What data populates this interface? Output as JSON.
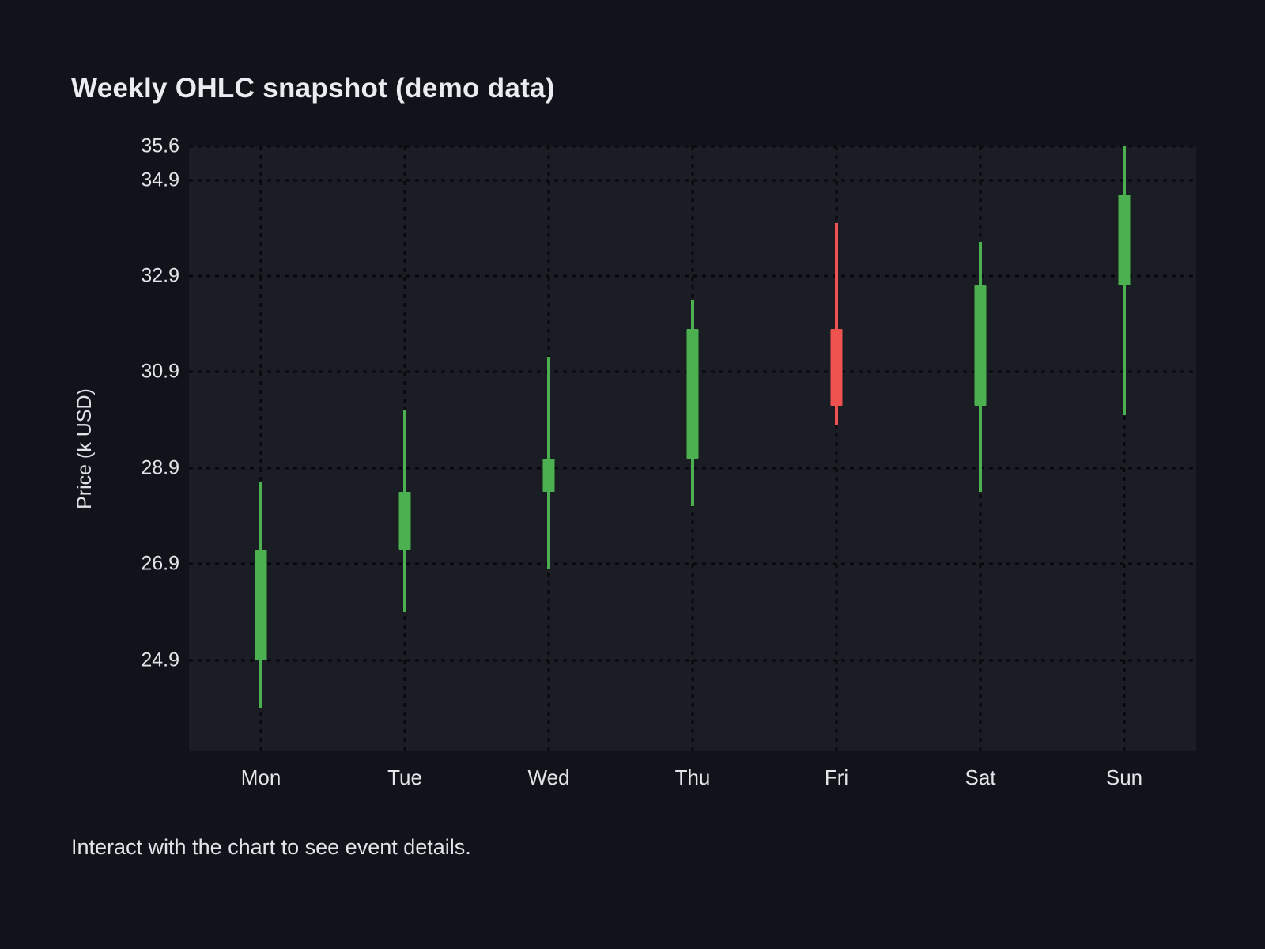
{
  "page": {
    "footer": "Interact with the chart to see event details."
  },
  "chart_data": {
    "type": "candlestick",
    "title": "Weekly OHLC snapshot (demo data)",
    "xlabel": "",
    "ylabel": "Price (k USD)",
    "categories": [
      "Mon",
      "Tue",
      "Wed",
      "Thu",
      "Fri",
      "Sat",
      "Sun"
    ],
    "candles": [
      {
        "day": "Mon",
        "open": 24.9,
        "high": 28.6,
        "low": 23.9,
        "close": 27.2
      },
      {
        "day": "Tue",
        "open": 27.2,
        "high": 30.1,
        "low": 25.9,
        "close": 28.4
      },
      {
        "day": "Wed",
        "open": 28.4,
        "high": 31.2,
        "low": 26.8,
        "close": 29.1
      },
      {
        "day": "Thu",
        "open": 29.1,
        "high": 32.4,
        "low": 28.1,
        "close": 31.8
      },
      {
        "day": "Fri",
        "open": 31.8,
        "high": 34.0,
        "low": 29.8,
        "close": 30.2
      },
      {
        "day": "Sat",
        "open": 30.2,
        "high": 33.6,
        "low": 28.4,
        "close": 32.7
      },
      {
        "day": "Sun",
        "open": 32.7,
        "high": 35.6,
        "low": 30.0,
        "close": 34.6
      }
    ],
    "y_ticks": [
      35.6,
      34.9,
      32.9,
      30.9,
      28.9,
      26.9,
      24.9
    ],
    "ylim": [
      23.0,
      35.6
    ],
    "grid": {
      "horizontal": "dotted",
      "vertical": "dotted"
    },
    "legend_position": "none",
    "colors": {
      "up": "#4caf50",
      "down": "#ef5350",
      "page_bg": "#11131a",
      "plot_bg": "#1a1d24",
      "grid_dot": "#06080d",
      "text": "#e2e5e9"
    }
  }
}
